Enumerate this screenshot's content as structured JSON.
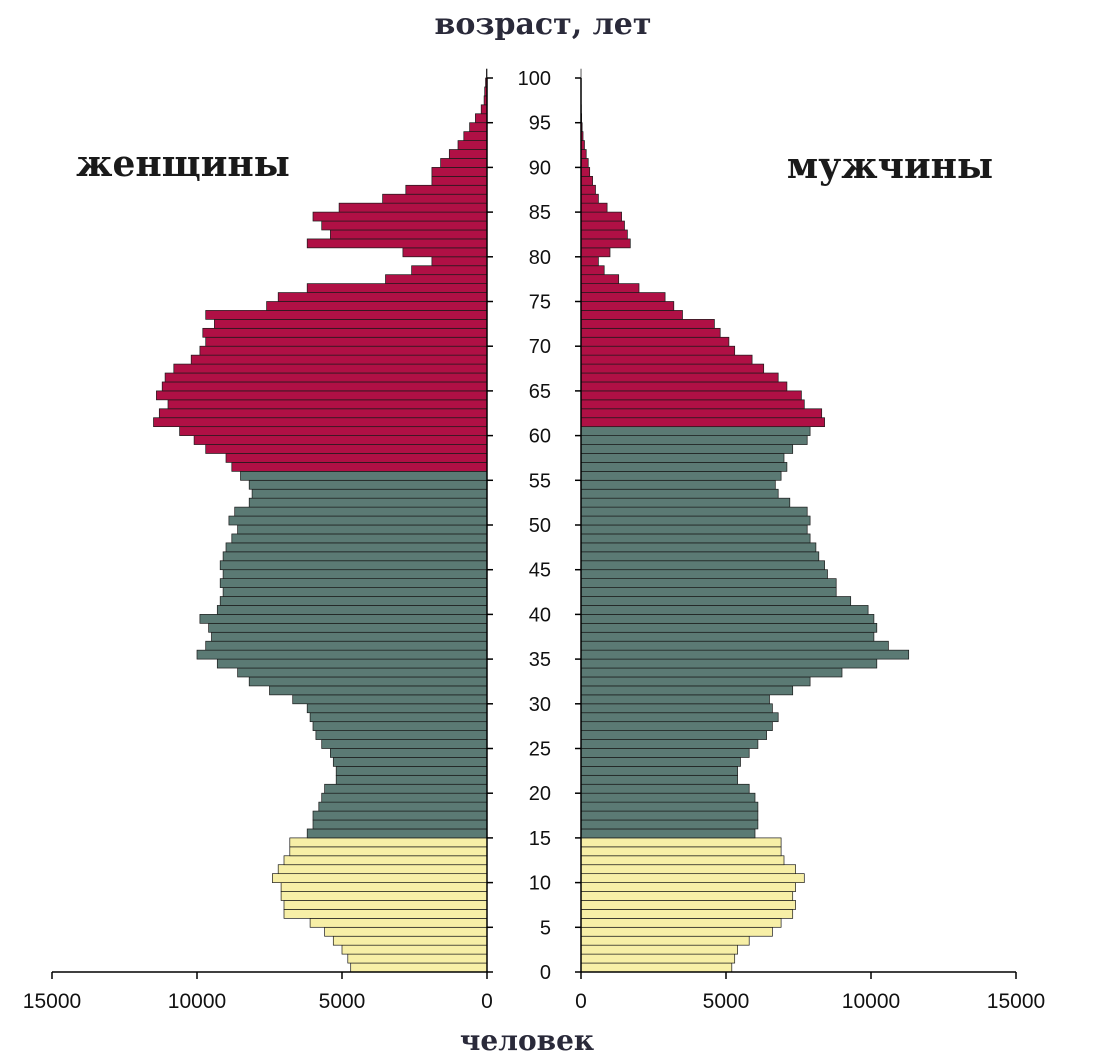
{
  "chart_data": {
    "type": "bar",
    "subtype": "population-pyramid",
    "title": "возраст, лет",
    "xlabel": "человек",
    "left_label": "женщины",
    "right_label": "мужчины",
    "age_ticks": [
      "0",
      "5",
      "10",
      "15",
      "20",
      "25",
      "30",
      "35",
      "40",
      "45",
      "50",
      "55",
      "60",
      "65",
      "70",
      "75",
      "80",
      "85",
      "90",
      "95",
      "100"
    ],
    "x_ticks_left": [
      "15000",
      "10000",
      "5000",
      "0"
    ],
    "x_ticks_right": [
      "0",
      "5000",
      "10000",
      "15000"
    ],
    "xlim": [
      0,
      15000
    ],
    "ylim": [
      0,
      100
    ],
    "colors": {
      "children": "#f7efa7",
      "working": "#5b7a74",
      "elderly": "#b01045"
    },
    "series": [
      {
        "name": "женщины",
        "age_groups": {
          "children_max_age": 14,
          "working_max_age": 55
        },
        "values": [
          4700,
          4800,
          5000,
          5300,
          5600,
          6100,
          7000,
          7000,
          7100,
          7100,
          7400,
          7200,
          7000,
          6800,
          6800,
          6200,
          6000,
          6000,
          5800,
          5700,
          5600,
          5200,
          5200,
          5300,
          5400,
          5700,
          5900,
          6000,
          6100,
          6200,
          6700,
          7500,
          8200,
          8600,
          9300,
          10000,
          9700,
          9500,
          9600,
          9900,
          9300,
          9200,
          9100,
          9200,
          9100,
          9200,
          9100,
          9000,
          8800,
          8600,
          8900,
          8700,
          8200,
          8100,
          8200,
          8500,
          8800,
          9000,
          9700,
          10100,
          10600,
          11500,
          11300,
          11000,
          11400,
          11200,
          11100,
          10800,
          10200,
          9900,
          9700,
          9800,
          9400,
          9700,
          7600,
          7200,
          6200,
          3500,
          2600,
          1900,
          2900,
          6200,
          5400,
          5700,
          6000,
          5100,
          3600,
          2800,
          1900,
          1900,
          1600,
          1300,
          1000,
          800,
          600,
          400,
          200,
          100,
          80,
          50,
          20
        ]
      },
      {
        "name": "мужчины",
        "age_groups": {
          "children_max_age": 14,
          "working_max_age": 60
        },
        "values": [
          5200,
          5300,
          5400,
          5800,
          6600,
          6900,
          7300,
          7400,
          7300,
          7400,
          7700,
          7400,
          7000,
          6900,
          6900,
          6000,
          6100,
          6100,
          6100,
          6000,
          5800,
          5400,
          5400,
          5500,
          5800,
          6100,
          6400,
          6600,
          6800,
          6600,
          6500,
          7300,
          7900,
          9000,
          10200,
          11300,
          10600,
          10100,
          10200,
          10100,
          9900,
          9300,
          8800,
          8800,
          8500,
          8400,
          8200,
          8100,
          7900,
          7800,
          7900,
          7800,
          7200,
          6800,
          6700,
          6900,
          7100,
          7000,
          7300,
          7800,
          7900,
          8400,
          8300,
          7700,
          7600,
          7100,
          6800,
          6300,
          5900,
          5300,
          5100,
          4800,
          4600,
          3500,
          3200,
          2900,
          2000,
          1300,
          800,
          600,
          1000,
          1700,
          1600,
          1500,
          1400,
          900,
          600,
          500,
          400,
          300,
          250,
          180,
          120,
          70,
          40,
          20,
          10,
          5,
          3,
          2,
          1
        ]
      }
    ]
  }
}
